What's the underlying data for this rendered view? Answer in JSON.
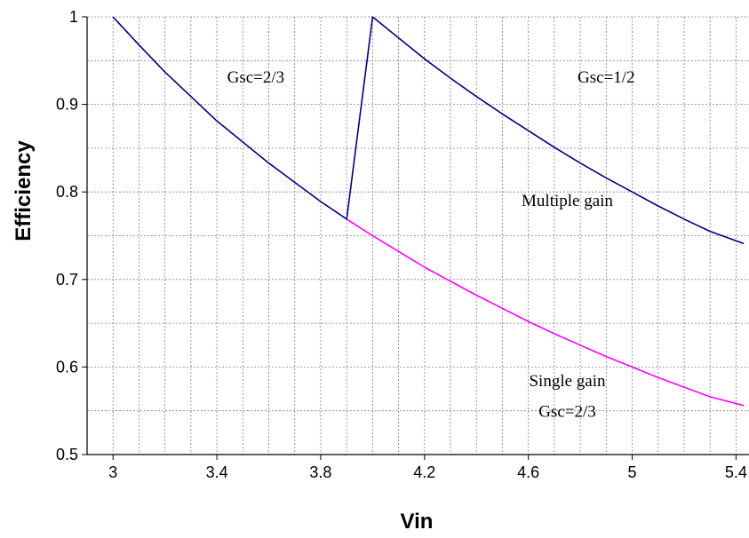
{
  "chart_data": {
    "type": "line",
    "title": "",
    "xlabel": "Vin",
    "ylabel": "Efficiency",
    "xlim": [
      2.9,
      5.45
    ],
    "ylim": [
      0.5,
      1.0
    ],
    "x_ticks": [
      "3",
      "3.4",
      "3.8",
      "4.2",
      "4.6",
      "5",
      "5.4"
    ],
    "y_ticks": [
      "0.5",
      "0.6",
      "0.7",
      "0.8",
      "0.9",
      "1"
    ],
    "grid": true,
    "series": [
      {
        "color": "#000080",
        "points": [
          [
            3.0,
            1.0
          ],
          [
            3.1,
            0.968
          ],
          [
            3.2,
            0.937
          ],
          [
            3.3,
            0.909
          ],
          [
            3.4,
            0.881
          ],
          [
            3.5,
            0.857
          ],
          [
            3.6,
            0.833
          ],
          [
            3.7,
            0.811
          ],
          [
            3.8,
            0.789
          ],
          [
            3.9,
            0.769
          ],
          [
            4.0,
            1.0
          ],
          [
            4.1,
            0.976
          ],
          [
            4.2,
            0.952
          ],
          [
            4.3,
            0.93
          ],
          [
            4.4,
            0.909
          ],
          [
            4.5,
            0.889
          ],
          [
            4.6,
            0.87
          ],
          [
            4.7,
            0.851
          ],
          [
            4.8,
            0.833
          ],
          [
            4.9,
            0.816
          ],
          [
            5.0,
            0.8
          ],
          [
            5.1,
            0.784
          ],
          [
            5.2,
            0.769
          ],
          [
            5.3,
            0.755
          ],
          [
            5.43,
            0.741
          ]
        ]
      },
      {
        "color": "#ff00ff",
        "points": [
          [
            3.9,
            0.769
          ],
          [
            4.0,
            0.75
          ],
          [
            4.1,
            0.732
          ],
          [
            4.2,
            0.714
          ],
          [
            4.3,
            0.698
          ],
          [
            4.4,
            0.682
          ],
          [
            4.5,
            0.667
          ],
          [
            4.6,
            0.652
          ],
          [
            4.7,
            0.638
          ],
          [
            4.8,
            0.625
          ],
          [
            4.9,
            0.612
          ],
          [
            5.0,
            0.6
          ],
          [
            5.1,
            0.588
          ],
          [
            5.2,
            0.577
          ],
          [
            5.3,
            0.566
          ],
          [
            5.43,
            0.556
          ]
        ]
      }
    ],
    "annotations": [
      {
        "text": "Gsc=2/3",
        "x": 3.55,
        "y": 0.925
      },
      {
        "text": "Gsc=1/2",
        "x": 4.9,
        "y": 0.925
      },
      {
        "text": "Multiple gain",
        "x": 4.75,
        "y": 0.784
      },
      {
        "text": "Single gain",
        "x": 4.75,
        "y": 0.578
      },
      {
        "text": "Gsc=2/3",
        "x": 4.75,
        "y": 0.543
      }
    ]
  }
}
